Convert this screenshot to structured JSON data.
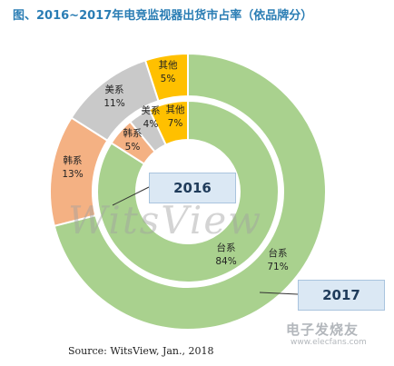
{
  "header": {
    "title": "图、2016~2017年电竞监视器出货市占率（依品牌分）"
  },
  "footer": {
    "source": "Source: WitsView, Jan., 2018"
  },
  "watermark": {
    "text": "WitsView",
    "logo_text": "电子发烧友",
    "logo_url": "www.elecfans.com"
  },
  "chart_data": {
    "type": "pie",
    "subtype": "nested-donut",
    "title": "图、2016~2017年电竞监视器出货市占率（依品牌分）",
    "rings": [
      {
        "ring": "outer",
        "label": "2017",
        "slices": [
          {
            "label": "台系",
            "value": 71,
            "display": "71%",
            "color": "#a9d18e"
          },
          {
            "label": "韩系",
            "value": 13,
            "display": "13%",
            "color": "#f4b183"
          },
          {
            "label": "美系",
            "value": 11,
            "display": "11%",
            "color": "#c9c9c9"
          },
          {
            "label": "其他",
            "value": 5,
            "display": "5%",
            "color": "#ffc000"
          }
        ]
      },
      {
        "ring": "inner",
        "label": "2016",
        "slices": [
          {
            "label": "台系",
            "value": 84,
            "display": "84%",
            "color": "#a9d18e"
          },
          {
            "label": "韩系",
            "value": 5,
            "display": "5%",
            "color": "#f4b183"
          },
          {
            "label": "美系",
            "value": 4,
            "display": "4%",
            "color": "#c9c9c9"
          },
          {
            "label": "其他",
            "value": 7,
            "display": "7%",
            "color": "#ffc000"
          }
        ]
      }
    ]
  }
}
